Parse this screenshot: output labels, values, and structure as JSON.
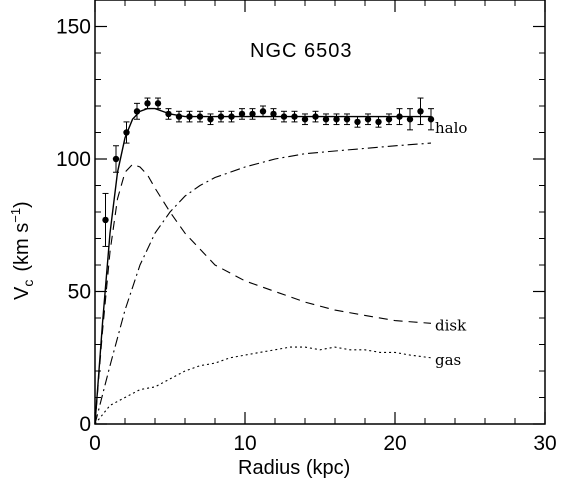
{
  "chart_data": {
    "type": "line",
    "title": "NGC 6503",
    "xlabel": "Radius (kpc)",
    "ylabel_main": "V",
    "ylabel_sub": "c",
    "ylabel_unit": "(km s",
    "ylabel_exp": "−1",
    "ylabel_close": ")",
    "xlim": [
      0,
      30
    ],
    "ylim": [
      0,
      160
    ],
    "x_ticks": [
      {
        "value": 0,
        "label": "0"
      },
      {
        "value": 10,
        "label": "10"
      },
      {
        "value": 20,
        "label": "20"
      },
      {
        "value": 30,
        "label": "30"
      }
    ],
    "y_ticks": [
      {
        "value": 0,
        "label": "0"
      },
      {
        "value": 50,
        "label": "50"
      },
      {
        "value": 100,
        "label": "100"
      },
      {
        "value": 150,
        "label": "150"
      }
    ],
    "observed": {
      "x": [
        0.7,
        1.4,
        2.1,
        2.8,
        3.5,
        4.2,
        4.9,
        5.6,
        6.3,
        7.0,
        7.7,
        8.4,
        9.1,
        9.8,
        10.5,
        11.2,
        11.9,
        12.6,
        13.3,
        14.0,
        14.7,
        15.4,
        16.1,
        16.8,
        17.5,
        18.2,
        18.9,
        19.6,
        20.3,
        21.0,
        21.7,
        22.4
      ],
      "y": [
        77,
        100,
        110,
        118,
        121,
        121,
        117,
        116,
        116,
        116,
        115,
        116,
        116,
        117,
        117,
        118,
        117,
        116,
        116,
        115,
        116,
        115,
        115,
        115,
        114,
        115,
        114,
        115,
        116,
        115,
        118,
        115
      ],
      "err": [
        10,
        5,
        4,
        3,
        2,
        2,
        2,
        2,
        2,
        2,
        2,
        2,
        2,
        2,
        2,
        2,
        2,
        2,
        2,
        2,
        2,
        2,
        2,
        2,
        2,
        2,
        2,
        2,
        3,
        4,
        5,
        4
      ]
    },
    "series": [
      {
        "label": "",
        "style": "solid",
        "x": [
          0,
          0.5,
          1.0,
          1.5,
          2.0,
          2.5,
          3.0,
          3.5,
          4.0,
          5.0,
          6.0,
          8.0,
          10.0,
          12.0,
          14.0,
          16.0,
          18.0,
          20.0,
          22.4
        ],
        "y": [
          0,
          38,
          72,
          95,
          108,
          115,
          118,
          119,
          119,
          117,
          116,
          116,
          116,
          116,
          116,
          116,
          116,
          116,
          116
        ]
      },
      {
        "label": "halo",
        "style": "dashdot",
        "x": [
          0,
          1,
          2,
          3,
          4,
          5,
          6,
          7,
          8,
          9,
          10,
          12,
          14,
          16,
          18,
          20,
          22.4
        ],
        "y": [
          0,
          22,
          43,
          60,
          72,
          80,
          86,
          90,
          93,
          95,
          97,
          100,
          102,
          103,
          104,
          105,
          106
        ]
      },
      {
        "label": "disk",
        "style": "dashed",
        "x": [
          0,
          0.5,
          1.0,
          1.5,
          2.0,
          2.5,
          3.0,
          3.5,
          4.0,
          5.0,
          6.0,
          7.0,
          8.0,
          10.0,
          12.0,
          14.0,
          16.0,
          18.0,
          20.0,
          22.4
        ],
        "y": [
          0,
          35,
          65,
          85,
          95,
          98,
          97,
          94,
          89,
          80,
          72,
          66,
          60,
          54,
          50,
          46,
          43,
          41,
          39,
          38
        ]
      },
      {
        "label": "gas",
        "style": "dotted",
        "x": [
          0,
          1,
          2,
          3,
          4,
          5,
          6,
          7,
          8,
          9,
          10,
          11,
          12,
          13,
          14,
          15,
          16,
          17,
          18,
          19,
          20,
          21,
          22.4
        ],
        "y": [
          0,
          7,
          10,
          13,
          14,
          17,
          20,
          22,
          23,
          25,
          26,
          27,
          28,
          29,
          29,
          28,
          29,
          28,
          28,
          27,
          27,
          26,
          25
        ]
      }
    ]
  }
}
